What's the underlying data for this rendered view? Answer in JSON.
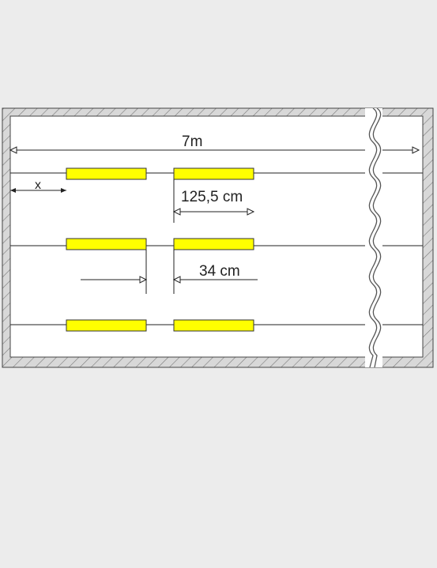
{
  "labels": {
    "total_width": "7m",
    "offset": "x",
    "tube_length": "125,5 cm",
    "gap": "34 cm"
  },
  "colors": {
    "background": "#ececec",
    "room_fill": "#ffffff",
    "wall_fill": "#d8d8d8",
    "hatch": "#7a7a7a",
    "line": "#222222",
    "tube_fill": "#ffff00",
    "tube_stroke": "#333333"
  },
  "rows": 3,
  "tubes_per_row": 2
}
